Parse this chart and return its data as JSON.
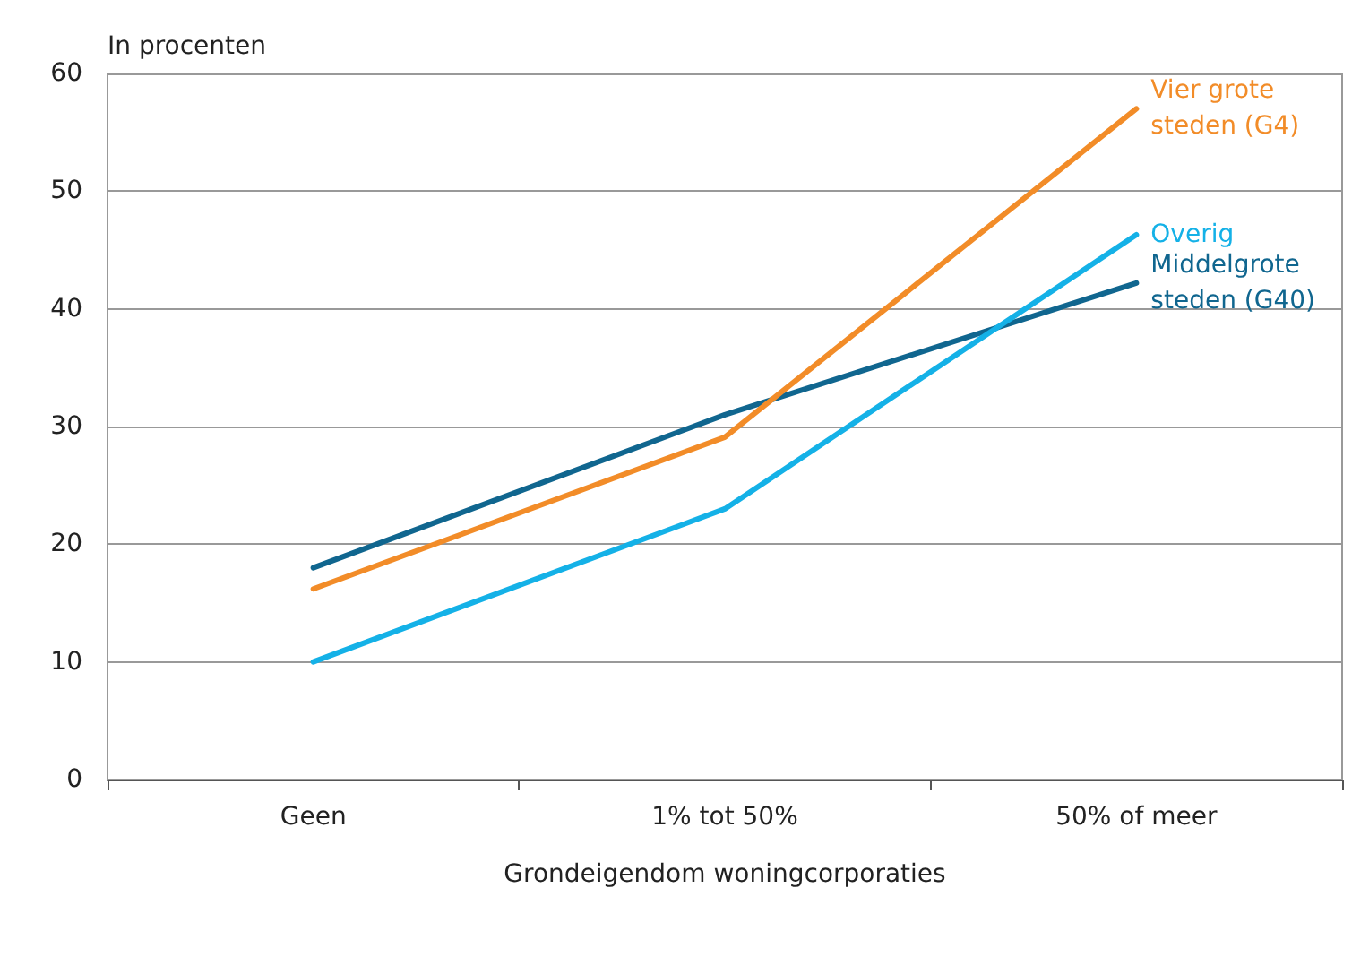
{
  "chart_data": {
    "type": "line",
    "ylabel": "In procenten",
    "xlabel": "Grondeigendom woningcorporaties",
    "categories": [
      "Geen",
      "1% tot 50%",
      "50% of meer"
    ],
    "series": [
      {
        "name": "Middelgrote steden (G40)",
        "color": "#10668f",
        "values": [
          18,
          31,
          42.2
        ]
      },
      {
        "name": "Vier grote steden (G4)",
        "color": "#f28c28",
        "values": [
          16.2,
          29.1,
          57
        ]
      },
      {
        "name": "Overig",
        "color": "#14b1e7",
        "values": [
          10,
          23,
          46.3
        ]
      }
    ],
    "ylim": [
      0,
      60
    ],
    "yticks": [
      0,
      10,
      20,
      30,
      40,
      50,
      60
    ],
    "grid": "y",
    "legend": false,
    "marker": "none",
    "line_style": "solid"
  }
}
